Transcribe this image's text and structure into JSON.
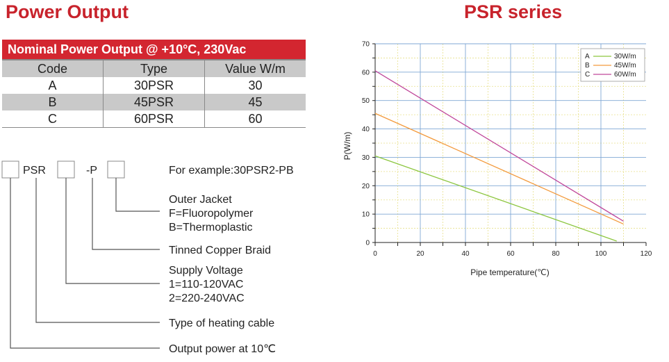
{
  "left_title": "Power Output",
  "right_title": "PSR series",
  "table": {
    "banner": "Nominal Power Output @ +10°C, 230Vac",
    "headers": [
      "Code",
      "Type",
      "Value W/m"
    ],
    "rows": [
      [
        "A",
        "30PSR",
        "30"
      ],
      [
        "B",
        "45PSR",
        "45"
      ],
      [
        "C",
        "60PSR",
        "60"
      ]
    ]
  },
  "naming": {
    "psr": "PSR",
    "p": "-P",
    "example": "For example:30PSR2-PB",
    "outer_jacket": "Outer Jacket",
    "outer_f": "F=Fluoropolymer",
    "outer_b": "B=Thermoplastic",
    "braid": "Tinned Copper Braid",
    "voltage": "Supply Voltage",
    "voltage_1": "1=110-120VAC",
    "voltage_2": "2=220-240VAC",
    "cable_type": "Type of heating cable",
    "output": "Output power at 10℃"
  },
  "chart_data": {
    "type": "line",
    "title": "PSR series",
    "xlabel": "Pipe temperature(℃)",
    "ylabel": "P(W/m)",
    "xlim": [
      0,
      120
    ],
    "ylim": [
      0,
      70
    ],
    "xticks": [
      0,
      20,
      40,
      60,
      80,
      100,
      120
    ],
    "yticks": [
      0,
      10,
      20,
      30,
      40,
      50,
      60,
      70
    ],
    "grid": true,
    "legend_position": "top-right",
    "series": [
      {
        "code": "A",
        "name": "30W/m",
        "color": "#8cc63f",
        "x": [
          0,
          107
        ],
        "y": [
          30.5,
          0.5
        ]
      },
      {
        "code": "B",
        "name": "45W/m",
        "color": "#f39a3c",
        "x": [
          0,
          110
        ],
        "y": [
          45.5,
          6.5
        ]
      },
      {
        "code": "C",
        "name": "60W/m",
        "color": "#c0479a",
        "x": [
          0,
          110
        ],
        "y": [
          60.5,
          7.5
        ]
      }
    ]
  }
}
